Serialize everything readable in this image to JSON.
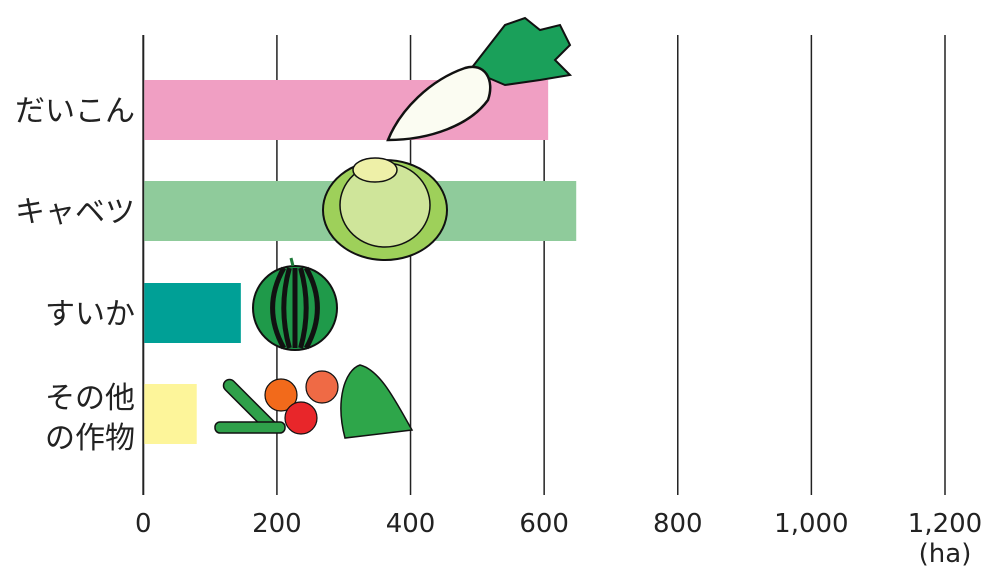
{
  "chart_data": {
    "type": "bar",
    "orientation": "horizontal",
    "categories": [
      "だいこん",
      "キャベツ",
      "すいか",
      [
        "その他",
        "の作物"
      ]
    ],
    "values": [
      606,
      648,
      146,
      80
    ],
    "colors": [
      "#f09fc3",
      "#8fcb9b",
      "#00a096",
      "#fdf59a"
    ],
    "xlim": [
      0,
      1200
    ],
    "xticks": [
      0,
      200,
      400,
      600,
      800,
      1000,
      1200
    ],
    "xtick_labels": [
      "0",
      "200",
      "400",
      "600",
      "800",
      "1,000",
      "1,200"
    ],
    "xunit": "(ha)",
    "grid": "vertical",
    "icons": [
      "daikon-icon",
      "cabbage-icon",
      "watermelon-icon",
      "cucumber-tomato-spinach-icon"
    ]
  }
}
